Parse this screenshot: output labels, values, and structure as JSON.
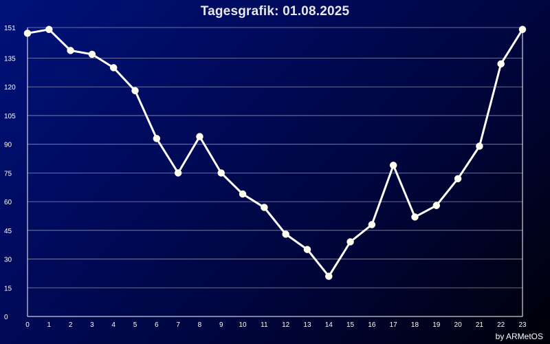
{
  "chart_data": {
    "type": "line",
    "title": "Tagesgrafik: 01.08.2025",
    "xlabel": "",
    "ylabel": "",
    "x": [
      0,
      1,
      2,
      3,
      4,
      5,
      6,
      7,
      8,
      9,
      10,
      11,
      12,
      13,
      14,
      15,
      16,
      17,
      18,
      19,
      20,
      21,
      22,
      23
    ],
    "series": [
      {
        "values": [
          148,
          150,
          139,
          137,
          130,
          118,
          93,
          75,
          94,
          75,
          64,
          57,
          43,
          35,
          21,
          39,
          48,
          79,
          52,
          58,
          72,
          89,
          132,
          150
        ]
      }
    ],
    "xlim": [
      0,
      23
    ],
    "ylim": [
      0,
      151
    ],
    "y_ticks": [
      0,
      15,
      30,
      45,
      60,
      75,
      90,
      105,
      120,
      135,
      151
    ],
    "x_ticks": [
      0,
      1,
      2,
      3,
      4,
      5,
      6,
      7,
      8,
      9,
      10,
      11,
      12,
      13,
      14,
      15,
      16,
      17,
      18,
      19,
      20,
      21,
      22,
      23
    ],
    "grid": true,
    "line_color": "#ffffff",
    "marker_color": "#fffff0",
    "credit": "by ARMetOS"
  }
}
